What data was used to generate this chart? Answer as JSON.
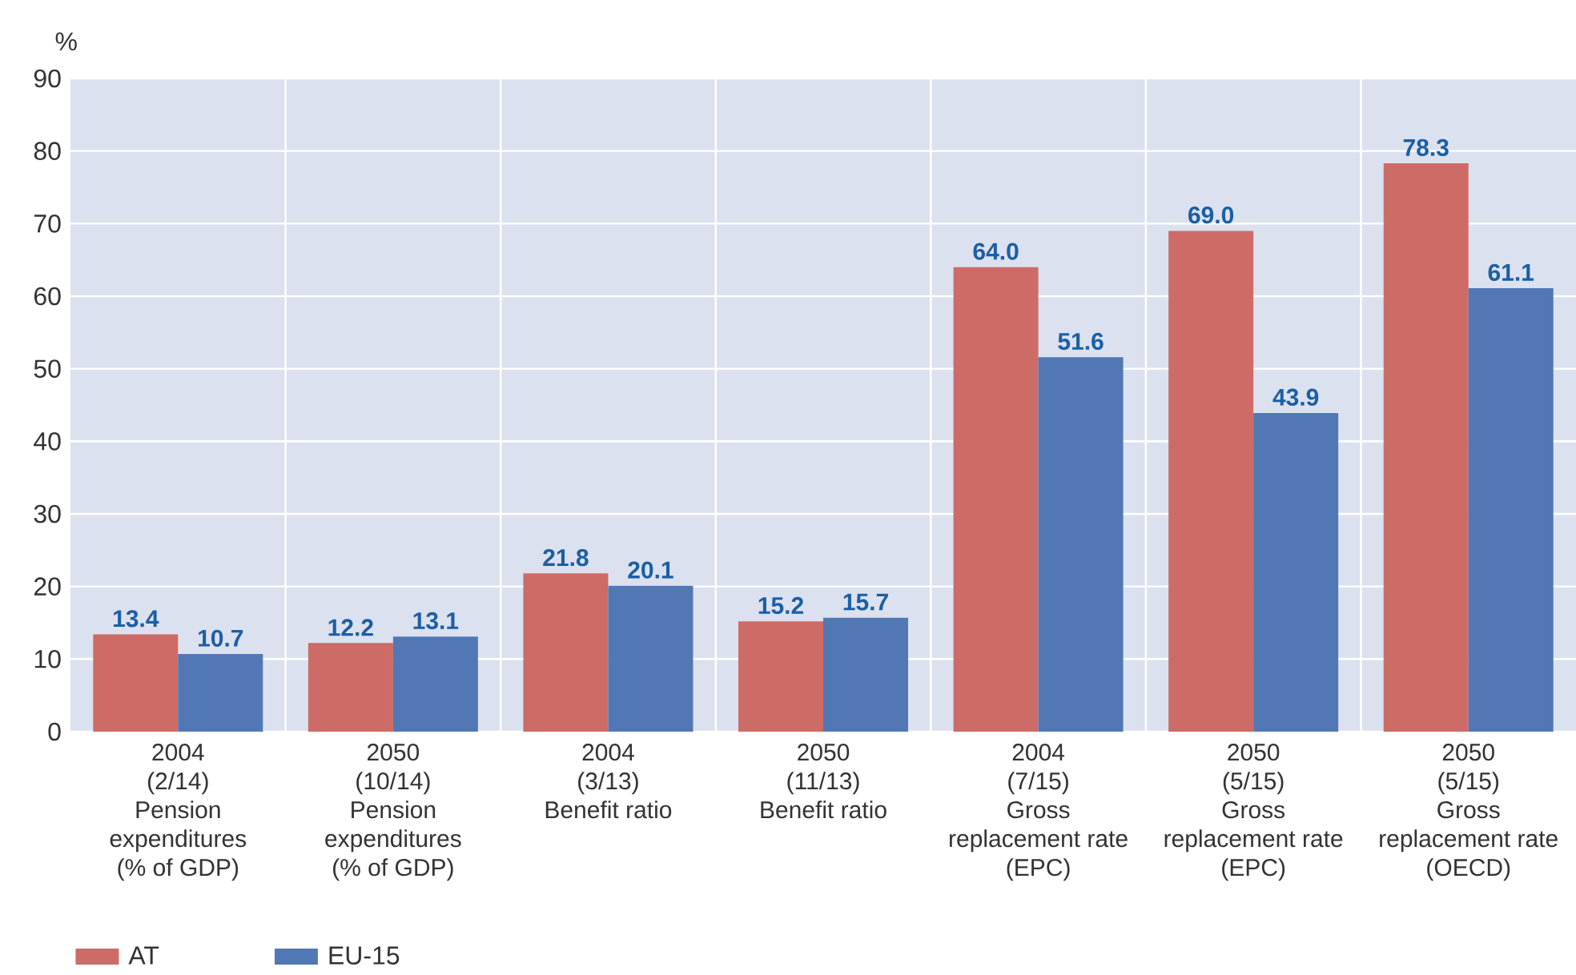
{
  "chart_data": {
    "type": "bar",
    "ylabel": "%",
    "categories": [
      "2004\n(2/14)\nPension\nexpenditures\n(% of GDP)",
      "2050\n(10/14)\nPension\nexpenditures\n(% of GDP)",
      "2004\n(3/13)\nBenefit ratio",
      "2050\n(11/13)\nBenefit ratio",
      "2004\n(7/15)\nGross\nreplacement rate\n(EPC)",
      "2050\n(5/15)\nGross\nreplacement rate\n(EPC)",
      "2050\n(5/15)\nGross\nreplacement rate\n(OECD)"
    ],
    "series": [
      {
        "name": "AT",
        "color": "#cd6b66",
        "values": [
          13.4,
          12.2,
          21.8,
          15.2,
          64.0,
          69.0,
          78.3
        ],
        "value_labels": [
          "13.4",
          "12.2",
          "21.8",
          "15.2",
          "64.0",
          "69.0",
          "78.3"
        ]
      },
      {
        "name": "EU-15",
        "color": "#5277b5",
        "values": [
          10.7,
          13.1,
          20.1,
          15.7,
          51.6,
          43.9,
          61.1
        ],
        "value_labels": [
          "10.7",
          "13.1",
          "20.1",
          "15.7",
          "51.6",
          "43.9",
          "61.1"
        ]
      }
    ],
    "ylim": [
      0,
      90
    ],
    "yticks": [
      0,
      10,
      20,
      30,
      40,
      50,
      60,
      70,
      80,
      90
    ],
    "grid": true,
    "legend": "bottom left"
  }
}
